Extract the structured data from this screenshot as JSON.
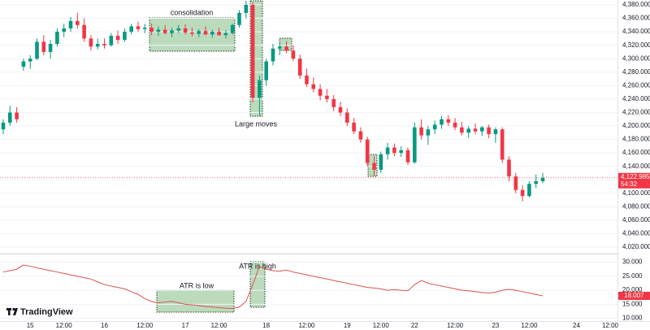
{
  "chart_data": {
    "type": "candlestick",
    "categories": [
      null,
      null,
      null,
      null,
      "15",
      null,
      null,
      null,
      null,
      "12:00",
      null,
      null,
      null,
      null,
      null,
      "16",
      null,
      null,
      null,
      null,
      null,
      "12:00",
      null,
      null,
      null,
      null,
      null,
      "17",
      null,
      null,
      null,
      null,
      "12:00",
      null,
      null,
      null,
      null,
      null,
      null,
      "18",
      null,
      null,
      null,
      null,
      null,
      "12:00",
      null,
      null,
      null,
      null,
      null,
      "19",
      null,
      null,
      null,
      null,
      "12:00",
      null,
      null,
      null,
      null,
      "22",
      null,
      null,
      null,
      null,
      null,
      "12:00",
      null,
      null,
      null,
      null,
      null,
      "23",
      null,
      null,
      null,
      null,
      "12:00",
      null,
      null,
      null,
      null,
      null,
      null,
      "24",
      null,
      null,
      null,
      null,
      "12:00"
    ],
    "open": [
      4195,
      4205,
      4220,
      4288,
      4296,
      4300,
      4325,
      4310,
      4322,
      4340,
      4345,
      4356,
      4350,
      4330,
      4318,
      4322,
      4320,
      4334,
      4328,
      4340,
      4348,
      4344,
      4346,
      4340,
      4343,
      4338,
      4342,
      4345,
      4339,
      4337,
      4341,
      4336,
      4340,
      4335,
      4338,
      4350,
      4368,
      4380,
      4242,
      4268,
      4296,
      4315,
      4318,
      4312,
      4300,
      4275,
      4262,
      4255,
      4245,
      4240,
      4228,
      4220,
      4205,
      4192,
      4180,
      4145,
      4135,
      4158,
      4168,
      4160,
      4164,
      4146,
      4198,
      4186,
      4195,
      4202,
      4210,
      4205,
      4198,
      4190,
      4196,
      4192,
      4198,
      4188,
      4195,
      4150,
      4125,
      4105,
      4096,
      4114,
      4118,
      null,
      null,
      null,
      null,
      null,
      null,
      null,
      null,
      null,
      null
    ],
    "high": [
      4210,
      4230,
      4228,
      4300,
      4305,
      4330,
      4335,
      4328,
      4345,
      4352,
      4362,
      4368,
      4360,
      4335,
      4330,
      4330,
      4338,
      4342,
      4345,
      4352,
      4355,
      4352,
      4352,
      4348,
      4350,
      4346,
      4350,
      4351,
      4346,
      4344,
      4348,
      4343,
      4346,
      4342,
      4352,
      4372,
      4386,
      4384,
      4275,
      4300,
      4322,
      4325,
      4326,
      4320,
      4306,
      4285,
      4272,
      4262,
      4255,
      4246,
      4236,
      4226,
      4212,
      4198,
      4184,
      4155,
      4162,
      4175,
      4174,
      4170,
      4168,
      4205,
      4210,
      4200,
      4208,
      4215,
      4216,
      4212,
      4206,
      4200,
      4204,
      4200,
      4202,
      4198,
      4198,
      4155,
      4130,
      4112,
      4118,
      4128,
      4130,
      null,
      null,
      null,
      null,
      null,
      null,
      null,
      null,
      null,
      null
    ],
    "low": [
      4188,
      4200,
      4205,
      4282,
      4285,
      4298,
      4305,
      4300,
      4318,
      4332,
      4340,
      4345,
      4325,
      4312,
      4314,
      4315,
      4318,
      4322,
      4325,
      4336,
      4340,
      4338,
      4335,
      4334,
      4336,
      4332,
      4338,
      4336,
      4333,
      4332,
      4335,
      4331,
      4334,
      4330,
      4336,
      4346,
      4360,
      4235,
      4215,
      4260,
      4290,
      4305,
      4308,
      4296,
      4270,
      4258,
      4250,
      4238,
      4235,
      4222,
      4215,
      4200,
      4188,
      4175,
      4140,
      4126,
      4130,
      4150,
      4155,
      4154,
      4142,
      4144,
      4180,
      4172,
      4188,
      4196,
      4200,
      4194,
      4186,
      4182,
      4188,
      4185,
      4182,
      4175,
      4145,
      4118,
      4100,
      4088,
      4094,
      4108,
      4115,
      null,
      null,
      null,
      null,
      null,
      null,
      null,
      null,
      null,
      null
    ],
    "close": [
      4205,
      4220,
      4210,
      4296,
      4300,
      4325,
      4310,
      4322,
      4340,
      4345,
      4356,
      4350,
      4330,
      4318,
      4322,
      4320,
      4334,
      4328,
      4340,
      4348,
      4344,
      4346,
      4340,
      4343,
      4338,
      4342,
      4345,
      4339,
      4337,
      4341,
      4336,
      4340,
      4335,
      4338,
      4350,
      4368,
      4380,
      4242,
      4268,
      4296,
      4315,
      4318,
      4312,
      4300,
      4275,
      4262,
      4255,
      4245,
      4240,
      4228,
      4220,
      4205,
      4192,
      4180,
      4145,
      4135,
      4158,
      4168,
      4160,
      4164,
      4146,
      4198,
      4186,
      4195,
      4202,
      4210,
      4205,
      4198,
      4190,
      4196,
      4192,
      4198,
      4188,
      4195,
      4150,
      4125,
      4105,
      4096,
      4114,
      4118,
      4122.985,
      null,
      null,
      null,
      null,
      null,
      null,
      null,
      null,
      null,
      null
    ],
    "up_color": "#089981",
    "down_color": "#f23645",
    "ylim": [
      4010.4,
      4387.2
    ],
    "yticks": [
      {
        "value": 4020,
        "label": "4,020.000"
      },
      {
        "value": 4040,
        "label": "4,040.000"
      },
      {
        "value": 4060,
        "label": "4,060.000"
      },
      {
        "value": 4080,
        "label": "4,080.000"
      },
      {
        "value": 4100,
        "label": "4,100.000"
      },
      {
        "value": 4120,
        "label": "4,120.000"
      },
      {
        "value": 4140,
        "label": "4,140.000"
      },
      {
        "value": 4160,
        "label": "4,160.000"
      },
      {
        "value": 4180,
        "label": "4,180.000"
      },
      {
        "value": 4200,
        "label": "4,200.000"
      },
      {
        "value": 4220,
        "label": "4,220.000"
      },
      {
        "value": 4240,
        "label": "4,240.000"
      },
      {
        "value": 4260,
        "label": "4,260.000"
      },
      {
        "value": 4280,
        "label": "4,280.000"
      },
      {
        "value": 4300,
        "label": "4,300.000"
      },
      {
        "value": 4320,
        "label": "4,320.000"
      },
      {
        "value": 4340,
        "label": "4,340.000"
      },
      {
        "value": 4360,
        "label": "4,360.000"
      },
      {
        "value": 4380,
        "label": "4,380.000"
      }
    ],
    "grid": true,
    "last_price": {
      "value": 4122.985,
      "label": "4,122.985"
    },
    "countdown": "54:32",
    "annotations": [
      "consolidation",
      "Large moves",
      "ATR is low",
      "ATR is high"
    ],
    "atr": {
      "color": "#d9534f",
      "values": [
        26.5,
        27,
        27.5,
        29,
        28.6,
        28,
        27.5,
        27,
        26.5,
        26,
        25.5,
        25,
        24.5,
        24,
        23,
        22,
        21.5,
        21,
        20.5,
        19.5,
        18.5,
        17,
        16,
        15.5,
        15.8,
        16,
        15.5,
        15,
        14.8,
        14.5,
        14.2,
        14,
        13.8,
        13.6,
        13.5,
        14,
        16,
        22,
        28.5,
        27.5,
        27,
        26.8,
        27.2,
        26.5,
        26,
        25.5,
        25,
        24.5,
        24,
        23.5,
        23,
        22.5,
        22,
        21.5,
        21,
        20.8,
        20.5,
        20,
        20.2,
        20,
        19.8,
        22,
        23.5,
        22.5,
        22,
        21.5,
        21,
        20.5,
        20,
        19.8,
        19.5,
        19.2,
        19,
        19.3,
        20,
        20.3,
        20,
        19.5,
        19,
        18.5,
        18.007,
        null,
        null,
        null,
        null,
        null,
        null,
        null,
        null,
        null,
        null
      ],
      "ylim": [
        9,
        32.5
      ],
      "yticks": [
        {
          "value": 10,
          "label": "10.000"
        },
        {
          "value": 15,
          "label": "15.000"
        },
        {
          "value": 20,
          "label": "20.000"
        },
        {
          "value": 25,
          "label": "25.000"
        },
        {
          "value": 30,
          "label": "30.000"
        }
      ]
    },
    "logo": "TradingView"
  }
}
